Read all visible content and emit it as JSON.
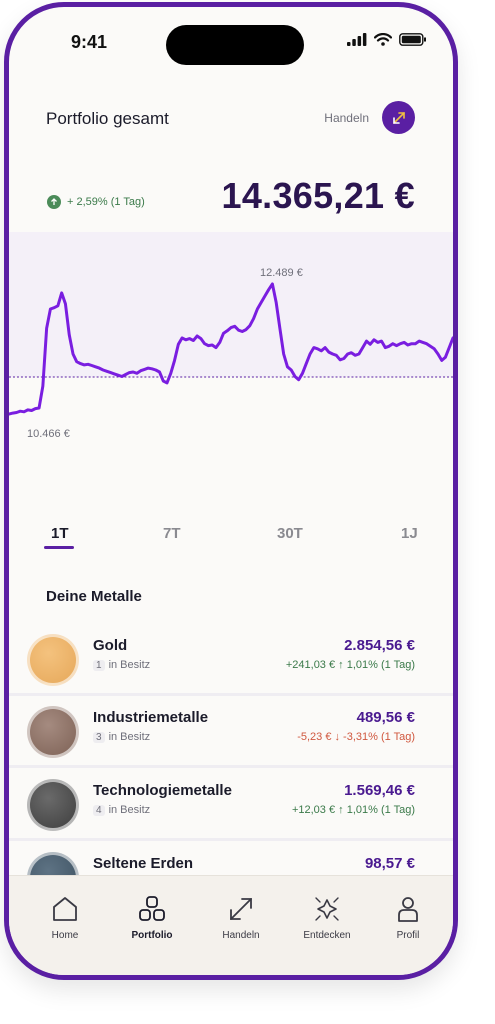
{
  "status": {
    "time": "9:41"
  },
  "header": {
    "title": "Portfolio gesamt",
    "trade_label": "Handeln"
  },
  "summary": {
    "change": "+ 2,59% (1 Tag)",
    "total": "14.365,21 €"
  },
  "chart_data": {
    "type": "line",
    "annotation_max": "12.489 €",
    "annotation_min": "10.466 €",
    "values": [
      10466,
      10480,
      10490,
      10510,
      10500,
      10530,
      10520,
      10550,
      10560,
      10900,
      11800,
      12100,
      12120,
      12150,
      12350,
      12180,
      11700,
      11400,
      11280,
      11250,
      11230,
      11240,
      11220,
      11200,
      11180,
      11150,
      11130,
      11110,
      11090,
      11070,
      11050,
      11080,
      11110,
      11120,
      11100,
      11140,
      11160,
      11180,
      11170,
      11150,
      11120,
      10980,
      10950,
      11100,
      11300,
      11550,
      11650,
      11620,
      11640,
      11610,
      11680,
      11640,
      11560,
      11530,
      11540,
      11500,
      11580,
      11720,
      11760,
      11810,
      11830,
      11770,
      11750,
      11780,
      11840,
      11950,
      12100,
      12200,
      12300,
      12400,
      12489,
      12200,
      11800,
      11400,
      11200,
      11150,
      11050,
      11000,
      11100,
      11250,
      11400,
      11500,
      11480,
      11450,
      11500,
      11430,
      11400,
      11380,
      11310,
      11330,
      11400,
      11420,
      11380,
      11400,
      11500,
      11600,
      11550,
      11620,
      11580,
      11600,
      11500,
      11520,
      11560,
      11530,
      11560,
      11580,
      11540,
      11560,
      11560,
      11600,
      11580,
      11560,
      11520,
      11480,
      11400,
      11300,
      11350,
      11500,
      11650
    ]
  },
  "ranges": [
    "1T",
    "7T",
    "30T",
    "1J"
  ],
  "active_range": "1T",
  "section_title": "Deine Metalle",
  "metals": [
    {
      "name": "Gold",
      "owned_count": "1",
      "owned_label": "in Besitz",
      "value": "2.854,56 €",
      "change": "+241,03 € ↑ 1,01% (1 Tag)",
      "direction": "up"
    },
    {
      "name": "Industriemetalle",
      "owned_count": "3",
      "owned_label": "in Besitz",
      "value": "489,56 €",
      "change": "-5,23 € ↓ -3,31% (1 Tag)",
      "direction": "down"
    },
    {
      "name": "Technologiemetalle",
      "owned_count": "4",
      "owned_label": "in Besitz",
      "value": "1.569,46 €",
      "change": "+12,03 € ↑ 1,01% (1 Tag)",
      "direction": "up"
    },
    {
      "name": "Seltene Erden",
      "value": "98,57 €"
    }
  ],
  "colors": {
    "accent": "#5a1fa3",
    "positive": "#3b7a4a",
    "negative": "#d0583f"
  },
  "tabs": [
    {
      "label": "Home",
      "icon": "home-icon"
    },
    {
      "label": "Portfolio",
      "icon": "portfolio-icon"
    },
    {
      "label": "Handeln",
      "icon": "trade-icon"
    },
    {
      "label": "Entdecken",
      "icon": "discover-icon"
    },
    {
      "label": "Profil",
      "icon": "profile-icon"
    }
  ],
  "active_tab": "Portfolio"
}
